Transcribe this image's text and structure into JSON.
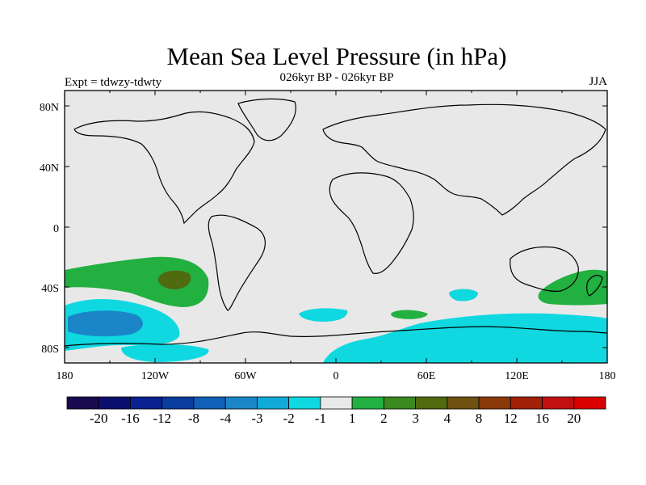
{
  "title": "Mean Sea Level Pressure (in hPa)",
  "subtitle": "026kyr BP - 026kyr BP",
  "expt_label": "Expt = tdwzy-tdwty",
  "season": "JJA",
  "map": {
    "lat_ticks": [
      "80N",
      "40N",
      "0",
      "40S",
      "80S"
    ],
    "lon_ticks": [
      "180",
      "120W",
      "60W",
      "0",
      "60E",
      "120E",
      "180"
    ],
    "background_color": "#e8e8e8",
    "coastline_color": "#000000"
  },
  "colorbar": {
    "colors": [
      "#1a0a50",
      "#0a0f6e",
      "#0a2290",
      "#0a3ca0",
      "#1060b8",
      "#1a86c8",
      "#10aad8",
      "#10d8e0",
      "#e8e8e8",
      "#22b040",
      "#3a8a20",
      "#506a10",
      "#6e5010",
      "#8a3a08",
      "#a02008",
      "#c01010",
      "#d80000"
    ],
    "labels": [
      "-20",
      "-16",
      "-12",
      "-8",
      "-4",
      "-3",
      "-2",
      "-1",
      "1",
      "2",
      "3",
      "4",
      "8",
      "12",
      "16",
      "20"
    ]
  }
}
